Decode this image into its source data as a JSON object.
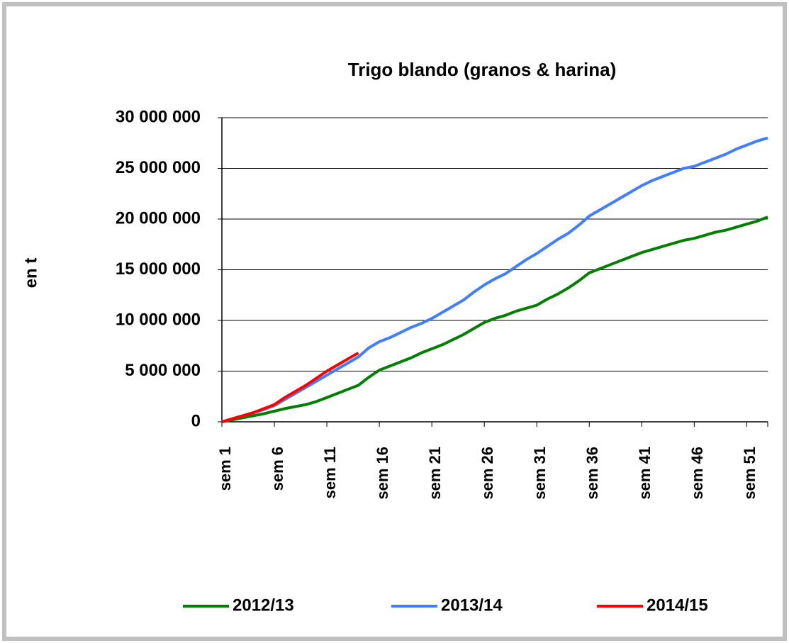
{
  "chart_data": {
    "type": "line",
    "title": "Trigo blando (granos & harina)",
    "y_label": "en t",
    "categories": [
      "sem 1",
      null,
      null,
      null,
      null,
      "sem 6",
      null,
      null,
      null,
      null,
      "sem 11",
      null,
      null,
      null,
      null,
      "sem 16",
      null,
      null,
      null,
      null,
      "sem 21",
      null,
      null,
      null,
      null,
      "sem 26",
      null,
      null,
      null,
      null,
      "sem 31",
      null,
      null,
      null,
      null,
      "sem 36",
      null,
      null,
      null,
      null,
      "sem 41",
      null,
      null,
      null,
      null,
      "sem 46",
      null,
      null,
      null,
      null,
      "sem 51",
      null,
      null
    ],
    "series": [
      {
        "name": "2012/13",
        "color": "#008000",
        "values": [
          0,
          200000,
          400000,
          600000,
          800000,
          1050000,
          1300000,
          1500000,
          1700000,
          2000000,
          2400000,
          2800000,
          3200000,
          3600000,
          4400000,
          5100000,
          5500000,
          5900000,
          6300000,
          6800000,
          7200000,
          7600000,
          8100000,
          8600000,
          9200000,
          9800000,
          10200000,
          10500000,
          10900000,
          11200000,
          11500000,
          12100000,
          12600000,
          13200000,
          13900000,
          14700000,
          15100000,
          15500000,
          15900000,
          16300000,
          16700000,
          17000000,
          17300000,
          17600000,
          17900000,
          18100000,
          18400000,
          18700000,
          18900000,
          19200000,
          19500000,
          19800000,
          20200000
        ]
      },
      {
        "name": "2013/14",
        "color": "#3f7fff",
        "values": [
          0,
          300000,
          600000,
          900000,
          1200000,
          1600000,
          2200000,
          2800000,
          3400000,
          4000000,
          4600000,
          5200000,
          5800000,
          6400000,
          7300000,
          7900000,
          8300000,
          8800000,
          9300000,
          9700000,
          10200000,
          10800000,
          11400000,
          12000000,
          12800000,
          13500000,
          14100000,
          14600000,
          15300000,
          16000000,
          16600000,
          17300000,
          18000000,
          18600000,
          19400000,
          20300000,
          20900000,
          21500000,
          22100000,
          22700000,
          23300000,
          23800000,
          24200000,
          24600000,
          25000000,
          25200000,
          25600000,
          26000000,
          26400000,
          26900000,
          27300000,
          27700000,
          28000000
        ]
      },
      {
        "name": "2014/15",
        "color": "#ff0000",
        "values": [
          0,
          300000,
          600000,
          900000,
          1300000,
          1700000,
          2400000,
          3000000,
          3600000,
          4300000,
          5000000,
          5600000,
          6200000,
          6800000,
          null,
          null,
          null,
          null,
          null,
          null,
          null,
          null,
          null,
          null,
          null,
          null,
          null,
          null,
          null,
          null,
          null,
          null,
          null,
          null,
          null,
          null,
          null,
          null,
          null,
          null,
          null,
          null,
          null,
          null,
          null,
          null,
          null,
          null,
          null,
          null,
          null,
          null,
          null
        ]
      }
    ],
    "ylim": [
      0,
      30000000
    ],
    "yticks": [
      0,
      {
        "value": 5000000,
        "label": "5 000 000"
      },
      {
        "value": 10000000,
        "label": "10 000 000"
      },
      {
        "value": 15000000,
        "label": "15 000 000"
      },
      {
        "value": 20000000,
        "label": "20 000 000"
      },
      {
        "value": 25000000,
        "label": "25 000 000"
      },
      {
        "value": 30000000,
        "label": "30 000 000"
      }
    ],
    "grid": true,
    "legend": "bottom"
  }
}
